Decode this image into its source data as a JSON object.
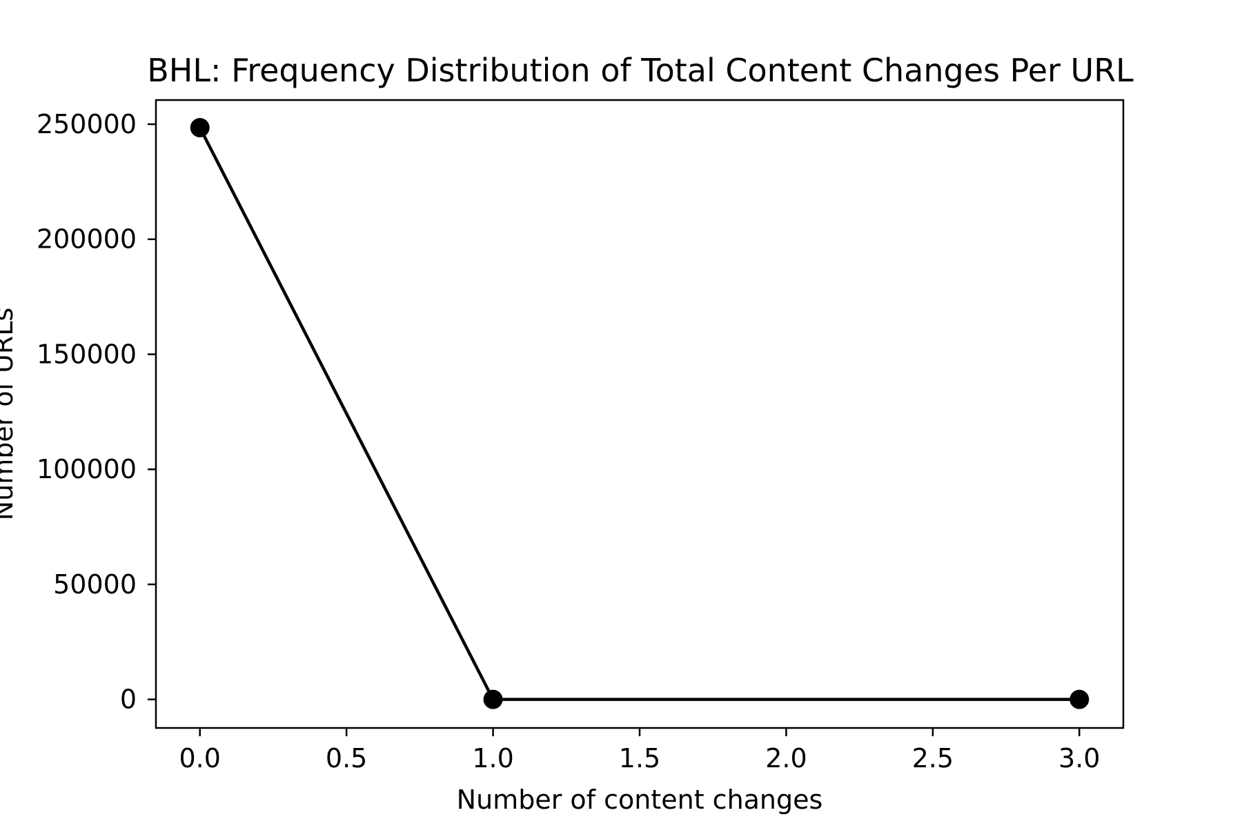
{
  "chart_data": {
    "type": "line",
    "title": "BHL: Frequency Distribution of Total Content Changes Per URL",
    "xlabel": "Number of content changes",
    "ylabel": "Number of URLs",
    "xlim": [
      -0.15,
      3.15
    ],
    "ylim": [
      -12400,
      260500
    ],
    "xticks": [
      0.0,
      0.5,
      1.0,
      1.5,
      2.0,
      2.5,
      3.0
    ],
    "xtick_labels": [
      "0.0",
      "0.5",
      "1.0",
      "1.5",
      "2.0",
      "2.5",
      "3.0"
    ],
    "yticks": [
      0,
      50000,
      100000,
      150000,
      200000,
      250000
    ],
    "ytick_labels": [
      "0",
      "50000",
      "100000",
      "150000",
      "200000",
      "250000"
    ],
    "series": [
      {
        "x": [
          0,
          1,
          3
        ],
        "y": [
          248500,
          0,
          0
        ]
      }
    ],
    "grid": false,
    "line_color": "#000000",
    "marker": "circle"
  }
}
